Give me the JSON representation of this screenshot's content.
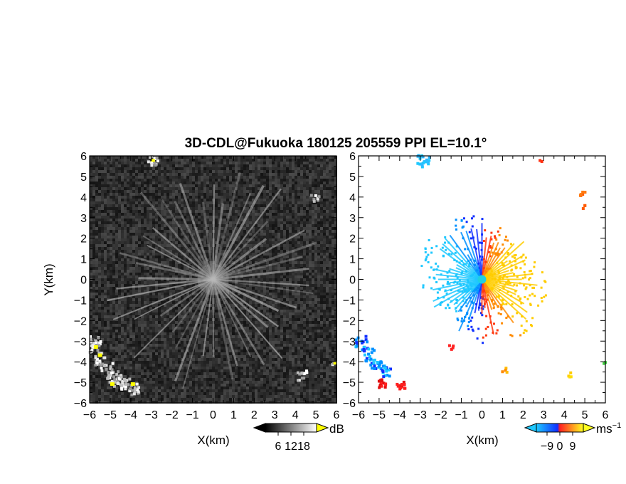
{
  "title": "3D-CDL@Fukuoka 180125 205559 PPI EL=10.1°",
  "panels": {
    "left": {
      "xlabel": "X(km)",
      "ylabel": "Y(km)",
      "colorbar": {
        "unit": "dB",
        "ticks": [
          "6",
          "12",
          "18"
        ],
        "colors": [
          "#000000",
          "#3a3a3a",
          "#7a7a7a",
          "#bbbbbb",
          "#f2f2f2",
          "#ffff00"
        ]
      }
    },
    "right": {
      "xlabel": "X(km)",
      "colorbar": {
        "unit": "ms",
        "unit_exp": "−1",
        "ticks": [
          "−9",
          "0",
          "9"
        ],
        "colors": [
          "#1ec8ff",
          "#0090ff",
          "#1030ff",
          "#ff2020",
          "#ff8a00",
          "#ffff20"
        ]
      }
    }
  },
  "chart_data": [
    {
      "type": "heatmap",
      "quantity": "SNR (dB)",
      "xlim": [
        -6,
        6
      ],
      "ylim": [
        -6,
        6
      ],
      "xticks": [
        "−6",
        "−5",
        "−4",
        "−3",
        "−2",
        "−1",
        "0",
        "1",
        "2",
        "3",
        "4",
        "5",
        "6"
      ],
      "yticks": [
        "6",
        "5",
        "4",
        "3",
        "2",
        "1",
        "0",
        "−1",
        "−2",
        "−3",
        "−4",
        "−5",
        "−6"
      ],
      "background": "dark gray noise",
      "features": [
        {
          "name": "radial streaks",
          "center": [
            0,
            0
          ],
          "extent_km": 4.5
        },
        {
          "name": "echo SW",
          "x_range": [
            -6,
            -3.5
          ],
          "y_range": [
            -5.8,
            -3
          ],
          "max_db": 18
        },
        {
          "name": "echo N",
          "x": -3,
          "y": 5.8
        },
        {
          "name": "echo SE",
          "x": 4.3,
          "y": -4.6
        },
        {
          "name": "echo E",
          "x": 4.9,
          "y": 4.0
        }
      ]
    },
    {
      "type": "heatmap",
      "quantity": "Doppler velocity (m/s)",
      "xlim": [
        -6,
        6
      ],
      "ylim": [
        -6,
        6
      ],
      "xticks": [
        "−6",
        "−5",
        "−4",
        "−3",
        "−2",
        "−1",
        "0",
        "1",
        "2",
        "3",
        "4",
        "5",
        "6"
      ],
      "yticks": [
        "6",
        "5",
        "4",
        "3",
        "2",
        "1",
        "0",
        "−1",
        "−2",
        "−3",
        "−4",
        "−5",
        "−6"
      ],
      "clim": [
        -9,
        9
      ],
      "features": [
        {
          "name": "approaching sector (west)",
          "center": [
            0,
            0
          ],
          "velocity": -9
        },
        {
          "name": "receding sector (east)",
          "center": [
            0,
            0
          ],
          "velocity": 9
        },
        {
          "name": "echo SW",
          "x_range": [
            -6,
            -3
          ],
          "y_range": [
            -6,
            -2.4
          ],
          "velocity_range": [
            -9,
            0
          ]
        },
        {
          "name": "echo N",
          "x": -2.9,
          "y": 5.8,
          "velocity": -8
        },
        {
          "name": "echo NE",
          "x": 4.8,
          "y": 4.2,
          "velocity": 6
        }
      ]
    }
  ]
}
